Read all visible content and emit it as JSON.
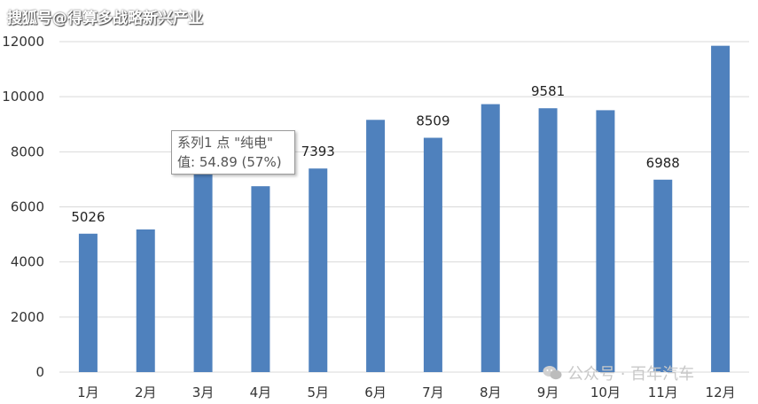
{
  "header": {
    "source": "搜狐号@得算多战略新兴产业"
  },
  "tooltip": {
    "line1": "系列1 点 \"纯电\"",
    "line2": "值: 54.89 (57%)"
  },
  "watermark": {
    "text": "公众号 · 百年汽车"
  },
  "colors": {
    "bar": "#4f81bd",
    "grid": "#d9d9d9"
  },
  "chart_data": {
    "type": "bar",
    "categories": [
      "1月",
      "2月",
      "3月",
      "4月",
      "5月",
      "6月",
      "7月",
      "8月",
      "9月",
      "10月",
      "11月",
      "12月"
    ],
    "values": [
      5026,
      5180,
      7250,
      6750,
      7393,
      9160,
      8509,
      9730,
      9581,
      9510,
      6988,
      11850
    ],
    "data_labels": [
      "5026",
      "",
      "",
      "",
      "7393",
      "",
      "8509",
      "",
      "9581",
      "",
      "6988",
      ""
    ],
    "yticks": [
      "0",
      "2000",
      "4000",
      "6000",
      "8000",
      "10000",
      "12000"
    ],
    "ylim": [
      0,
      12000
    ],
    "grid": true,
    "title": "",
    "xlabel": "",
    "ylabel": ""
  }
}
